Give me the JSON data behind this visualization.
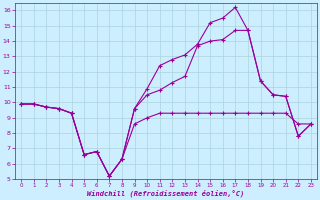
{
  "xlabel": "Windchill (Refroidissement éolien,°C)",
  "bg_color": "#cceeff",
  "line_color": "#990099",
  "grid_color": "#aad4dd",
  "xlim": [
    -0.5,
    23.5
  ],
  "ylim": [
    5,
    16.5
  ],
  "xticks": [
    0,
    1,
    2,
    3,
    4,
    5,
    6,
    7,
    8,
    9,
    10,
    11,
    12,
    13,
    14,
    15,
    16,
    17,
    18,
    19,
    20,
    21,
    22,
    23
  ],
  "yticks": [
    5,
    6,
    7,
    8,
    9,
    10,
    11,
    12,
    13,
    14,
    15,
    16
  ],
  "series": [
    [
      9.9,
      9.9,
      9.7,
      9.6,
      9.3,
      6.6,
      6.8,
      5.2,
      6.3,
      8.6,
      9.0,
      9.3,
      9.3,
      9.3,
      9.3,
      9.3,
      9.3,
      9.3,
      9.3,
      9.3,
      9.3,
      9.3,
      8.6,
      8.6
    ],
    [
      9.9,
      9.9,
      9.7,
      9.6,
      9.3,
      6.6,
      6.8,
      5.2,
      6.3,
      9.6,
      10.9,
      12.4,
      12.8,
      13.1,
      13.8,
      15.2,
      15.5,
      16.2,
      14.7,
      11.4,
      10.5,
      10.4,
      7.8,
      8.6
    ],
    [
      9.9,
      9.9,
      9.7,
      9.6,
      9.3,
      6.6,
      6.8,
      5.2,
      6.3,
      9.6,
      10.5,
      10.8,
      11.3,
      11.7,
      13.7,
      14.0,
      14.1,
      14.7,
      14.7,
      11.4,
      10.5,
      10.4,
      7.8,
      8.6
    ]
  ]
}
